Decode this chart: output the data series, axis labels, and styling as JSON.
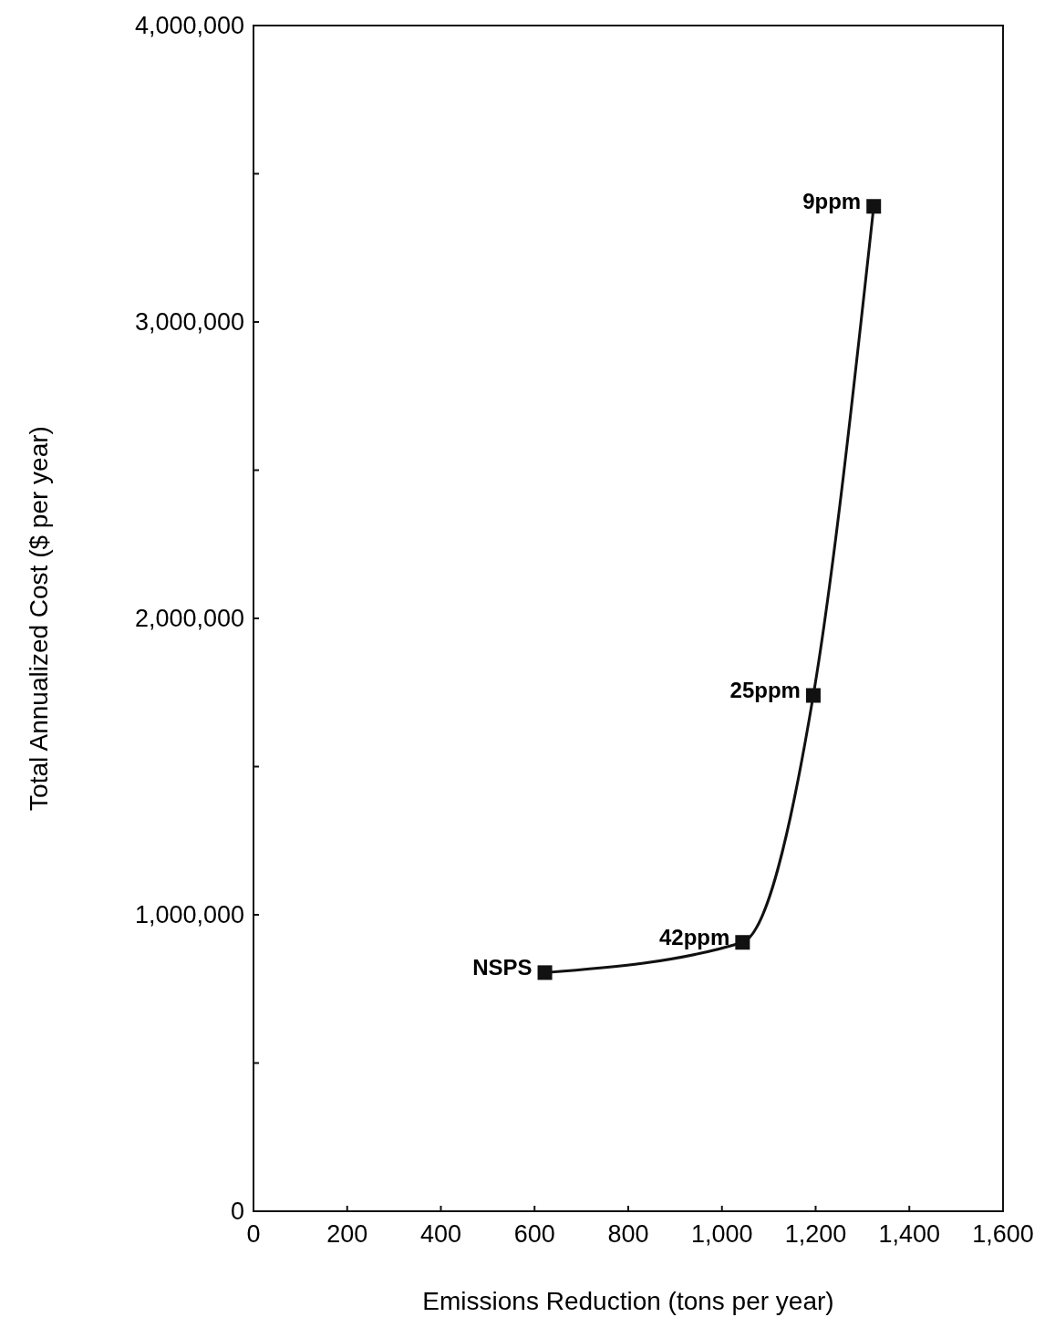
{
  "chart_data": {
    "type": "line",
    "xlabel": "Emissions Reduction (tons per year)",
    "ylabel": "Total Annualized Cost ($ per year)",
    "x": [
      622,
      1044,
      1195,
      1324
    ],
    "series": [
      {
        "color": "#111111",
        "values": [
          805000,
          907000,
          1740000,
          3390000
        ]
      }
    ],
    "marker": "square",
    "line_style": "solid",
    "grid": false,
    "xlim": [
      0,
      1600
    ],
    "ylim": [
      0,
      4000000
    ],
    "xticks": [
      0,
      200,
      400,
      600,
      800,
      {
        "value": 1000,
        "label": "1,000"
      },
      {
        "value": 1200,
        "label": "1,200"
      },
      {
        "value": 1400,
        "label": "1,400"
      },
      {
        "value": 1600,
        "label": "1,600"
      }
    ],
    "yticks": [
      0,
      {
        "value": 500000,
        "label": null
      },
      {
        "value": 1000000,
        "label": "1,000,000"
      },
      {
        "value": 1500000,
        "label": null
      },
      {
        "value": 2000000,
        "label": "2,000,000"
      },
      {
        "value": 2500000,
        "label": null
      },
      {
        "value": 3000000,
        "label": "3,000,000"
      },
      {
        "value": 3500000,
        "label": null
      },
      {
        "value": 4000000,
        "label": "4,000,000"
      }
    ],
    "annotations": [
      {
        "text": "NSPS",
        "x": 622,
        "y": 805000
      },
      {
        "text": "42ppm",
        "x": 1044,
        "y": 907000
      },
      {
        "text": "25ppm",
        "x": 1195,
        "y": 1740000
      },
      {
        "text": "9ppm",
        "x": 1324,
        "y": 3390000
      }
    ]
  }
}
